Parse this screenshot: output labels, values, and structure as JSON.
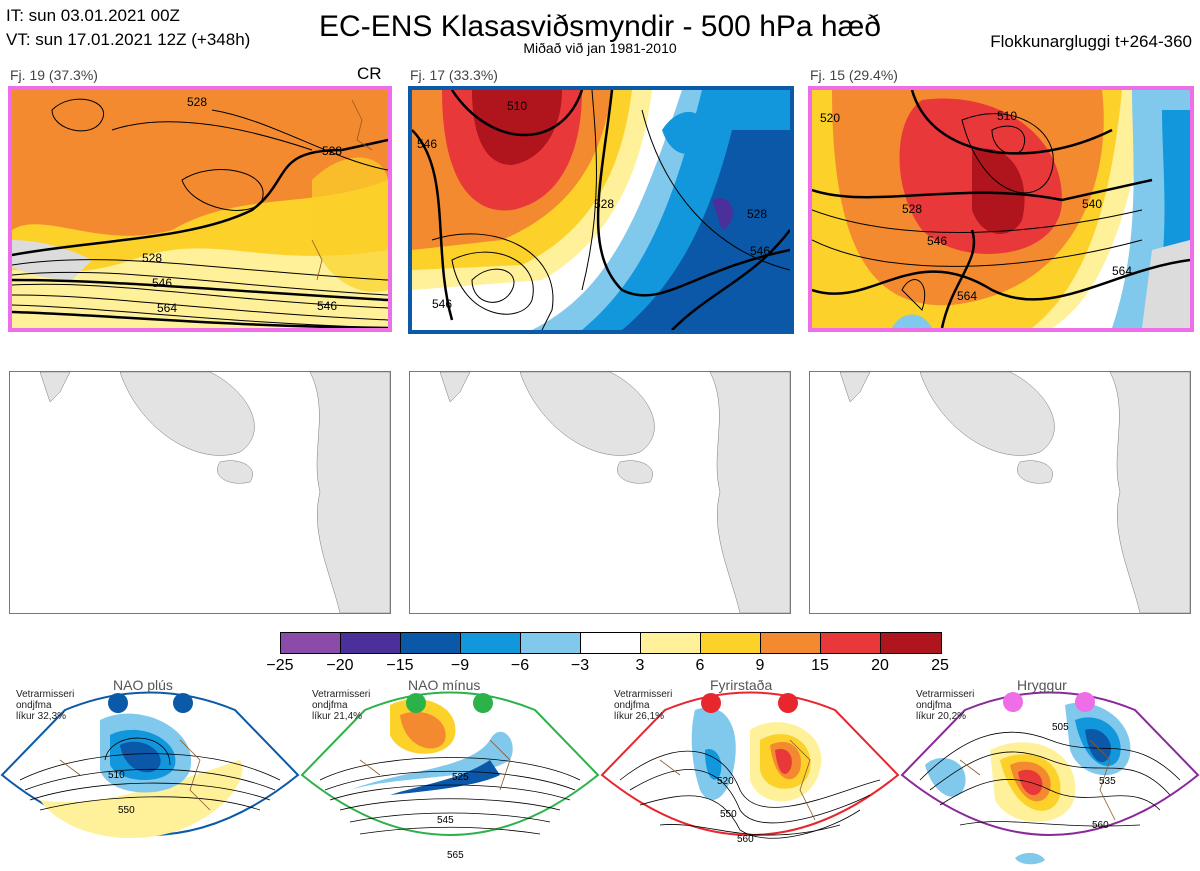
{
  "header": {
    "it_line": "IT: sun 03.01.2021 00Z",
    "vt_line": "VT: sun 17.01.2021 12Z  (+348h)",
    "title": "EC-ENS Klasasviðsmyndir - 500 hPa hæð",
    "subtitle": "Miðað við jan 1981-2010",
    "window": "Flokkunargluggi t+264-360"
  },
  "clusters": [
    {
      "label": "Fj. 19 (37.3%)",
      "tag": "CR",
      "frame_color": "#ee6ee8",
      "contours": [
        "528",
        "528",
        "546",
        "564",
        "546",
        "528"
      ]
    },
    {
      "label": "Fj. 17 (33.3%)",
      "tag": "",
      "frame_color": "#0a5aa8",
      "contours": [
        "510",
        "546",
        "528",
        "528",
        "546",
        "546"
      ]
    },
    {
      "label": "Fj. 15 (29.4%)",
      "tag": "",
      "frame_color": "#ee6ee8",
      "contours": [
        "510",
        "520",
        "528",
        "546",
        "540",
        "564",
        "564"
      ]
    }
  ],
  "colorbar": {
    "colors": [
      "#8b4ba8",
      "#4b2f9a",
      "#0b58a8",
      "#1296dc",
      "#80c8ec",
      "#ffffff",
      "#fff09a",
      "#fbd12a",
      "#f48a30",
      "#e8383a",
      "#b0141c"
    ],
    "ticks": [
      "−25",
      "−20",
      "−15",
      "−9",
      "−6",
      "−3",
      "3",
      "6",
      "9",
      "15",
      "20",
      "25"
    ]
  },
  "regimes": [
    {
      "name": "NAO plús",
      "note1": "Vetrarmisseri",
      "note2": "ondjfma",
      "note3": "líkur 32,3%",
      "color": "#0a5aa8",
      "contours": [
        "510",
        "550"
      ]
    },
    {
      "name": "NAO mínus",
      "note1": "Vetrarmisseri",
      "note2": "ondjfma",
      "note3": "líkur 21,4%",
      "color": "#2db24a",
      "contours": [
        "525",
        "545",
        "565"
      ]
    },
    {
      "name": "Fyrirstaða",
      "note1": "Vetrarmisseri",
      "note2": "ondjfma",
      "note3": "líkur 26,1%",
      "color": "#e8262e",
      "contours": [
        "520",
        "550",
        "560"
      ]
    },
    {
      "name": "Hryggur",
      "note1": "Vetrarmisseri",
      "note2": "ondjfma",
      "note3": "líkur 20,2%",
      "color": "#ee6ee8",
      "contours": [
        "505",
        "535",
        "560"
      ]
    }
  ]
}
